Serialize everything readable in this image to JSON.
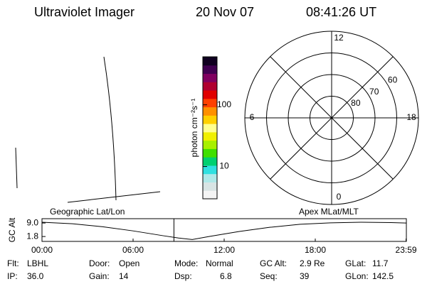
{
  "header": {
    "title": "Ultraviolet Imager",
    "date": "20 Nov 07",
    "time": "08:41:26 UT"
  },
  "colorbar": {
    "label": "photon cm⁻²s⁻¹",
    "lim": [
      3,
      600
    ],
    "log": true,
    "ticks": [
      10,
      100
    ],
    "colors": [
      "#f4f4f4",
      "#d8e4e4",
      "#aee8e8",
      "#30e0e0",
      "#00d070",
      "#40e000",
      "#a8f000",
      "#f0f000",
      "#ffff90",
      "#ffd000",
      "#ff9000",
      "#ff4000",
      "#e00000",
      "#b00030",
      "#800060",
      "#400050",
      "#100020"
    ]
  },
  "polar": {
    "rings": [
      60,
      70,
      80
    ],
    "mlt": [
      12,
      6,
      0,
      18
    ]
  },
  "chart_data": {
    "type": "line",
    "ylabel": "GC Alt",
    "annotations": [
      "Geographic Lat/Lon",
      "Apex MLat/MLT"
    ],
    "x": [
      0,
      2,
      4,
      6,
      8,
      9,
      9.9,
      11,
      13,
      15,
      17,
      19,
      21,
      23,
      23.98
    ],
    "values": [
      9.4,
      8.6,
      7.0,
      4.8,
      2.2,
      1.0,
      0.2,
      1.8,
      4.5,
      6.7,
      8.3,
      9.1,
      9.4,
      9.2,
      9.0
    ],
    "color": "#000000",
    "xlim": [
      0,
      24
    ],
    "xticks": [
      {
        "value": 0,
        "label": "00:00"
      },
      {
        "value": 6,
        "label": "06:00"
      },
      {
        "value": 12,
        "label": "12:00"
      },
      {
        "value": 18,
        "label": "18:00"
      },
      {
        "value": 23.98,
        "label": "23:59"
      }
    ],
    "ylim": [
      -0.8,
      11.3
    ],
    "yticks": [
      {
        "value": 1.8,
        "label": "1.8"
      },
      {
        "value": 9.0,
        "label": "9.0"
      }
    ],
    "marker": {
      "x": 8.69,
      "color": "#e00000"
    }
  },
  "info": [
    [
      {
        "label": "Flt:",
        "value": "LBHL"
      },
      {
        "label": "Door:",
        "value": "Open"
      },
      {
        "label": "Mode:",
        "value": "Normal"
      },
      {
        "label": "GC Alt:",
        "value": "2.9 Re"
      },
      {
        "label": "GLat:",
        "value": "11.7"
      }
    ],
    [
      {
        "label": "IP:",
        "value": "36.0"
      },
      {
        "label": "Gain:",
        "value": "14"
      },
      {
        "label": "Dsp:",
        "value": "6.8"
      },
      {
        "label": "Seq:",
        "value": "39"
      },
      {
        "label": "GLon:",
        "value": "142.5"
      }
    ]
  ]
}
